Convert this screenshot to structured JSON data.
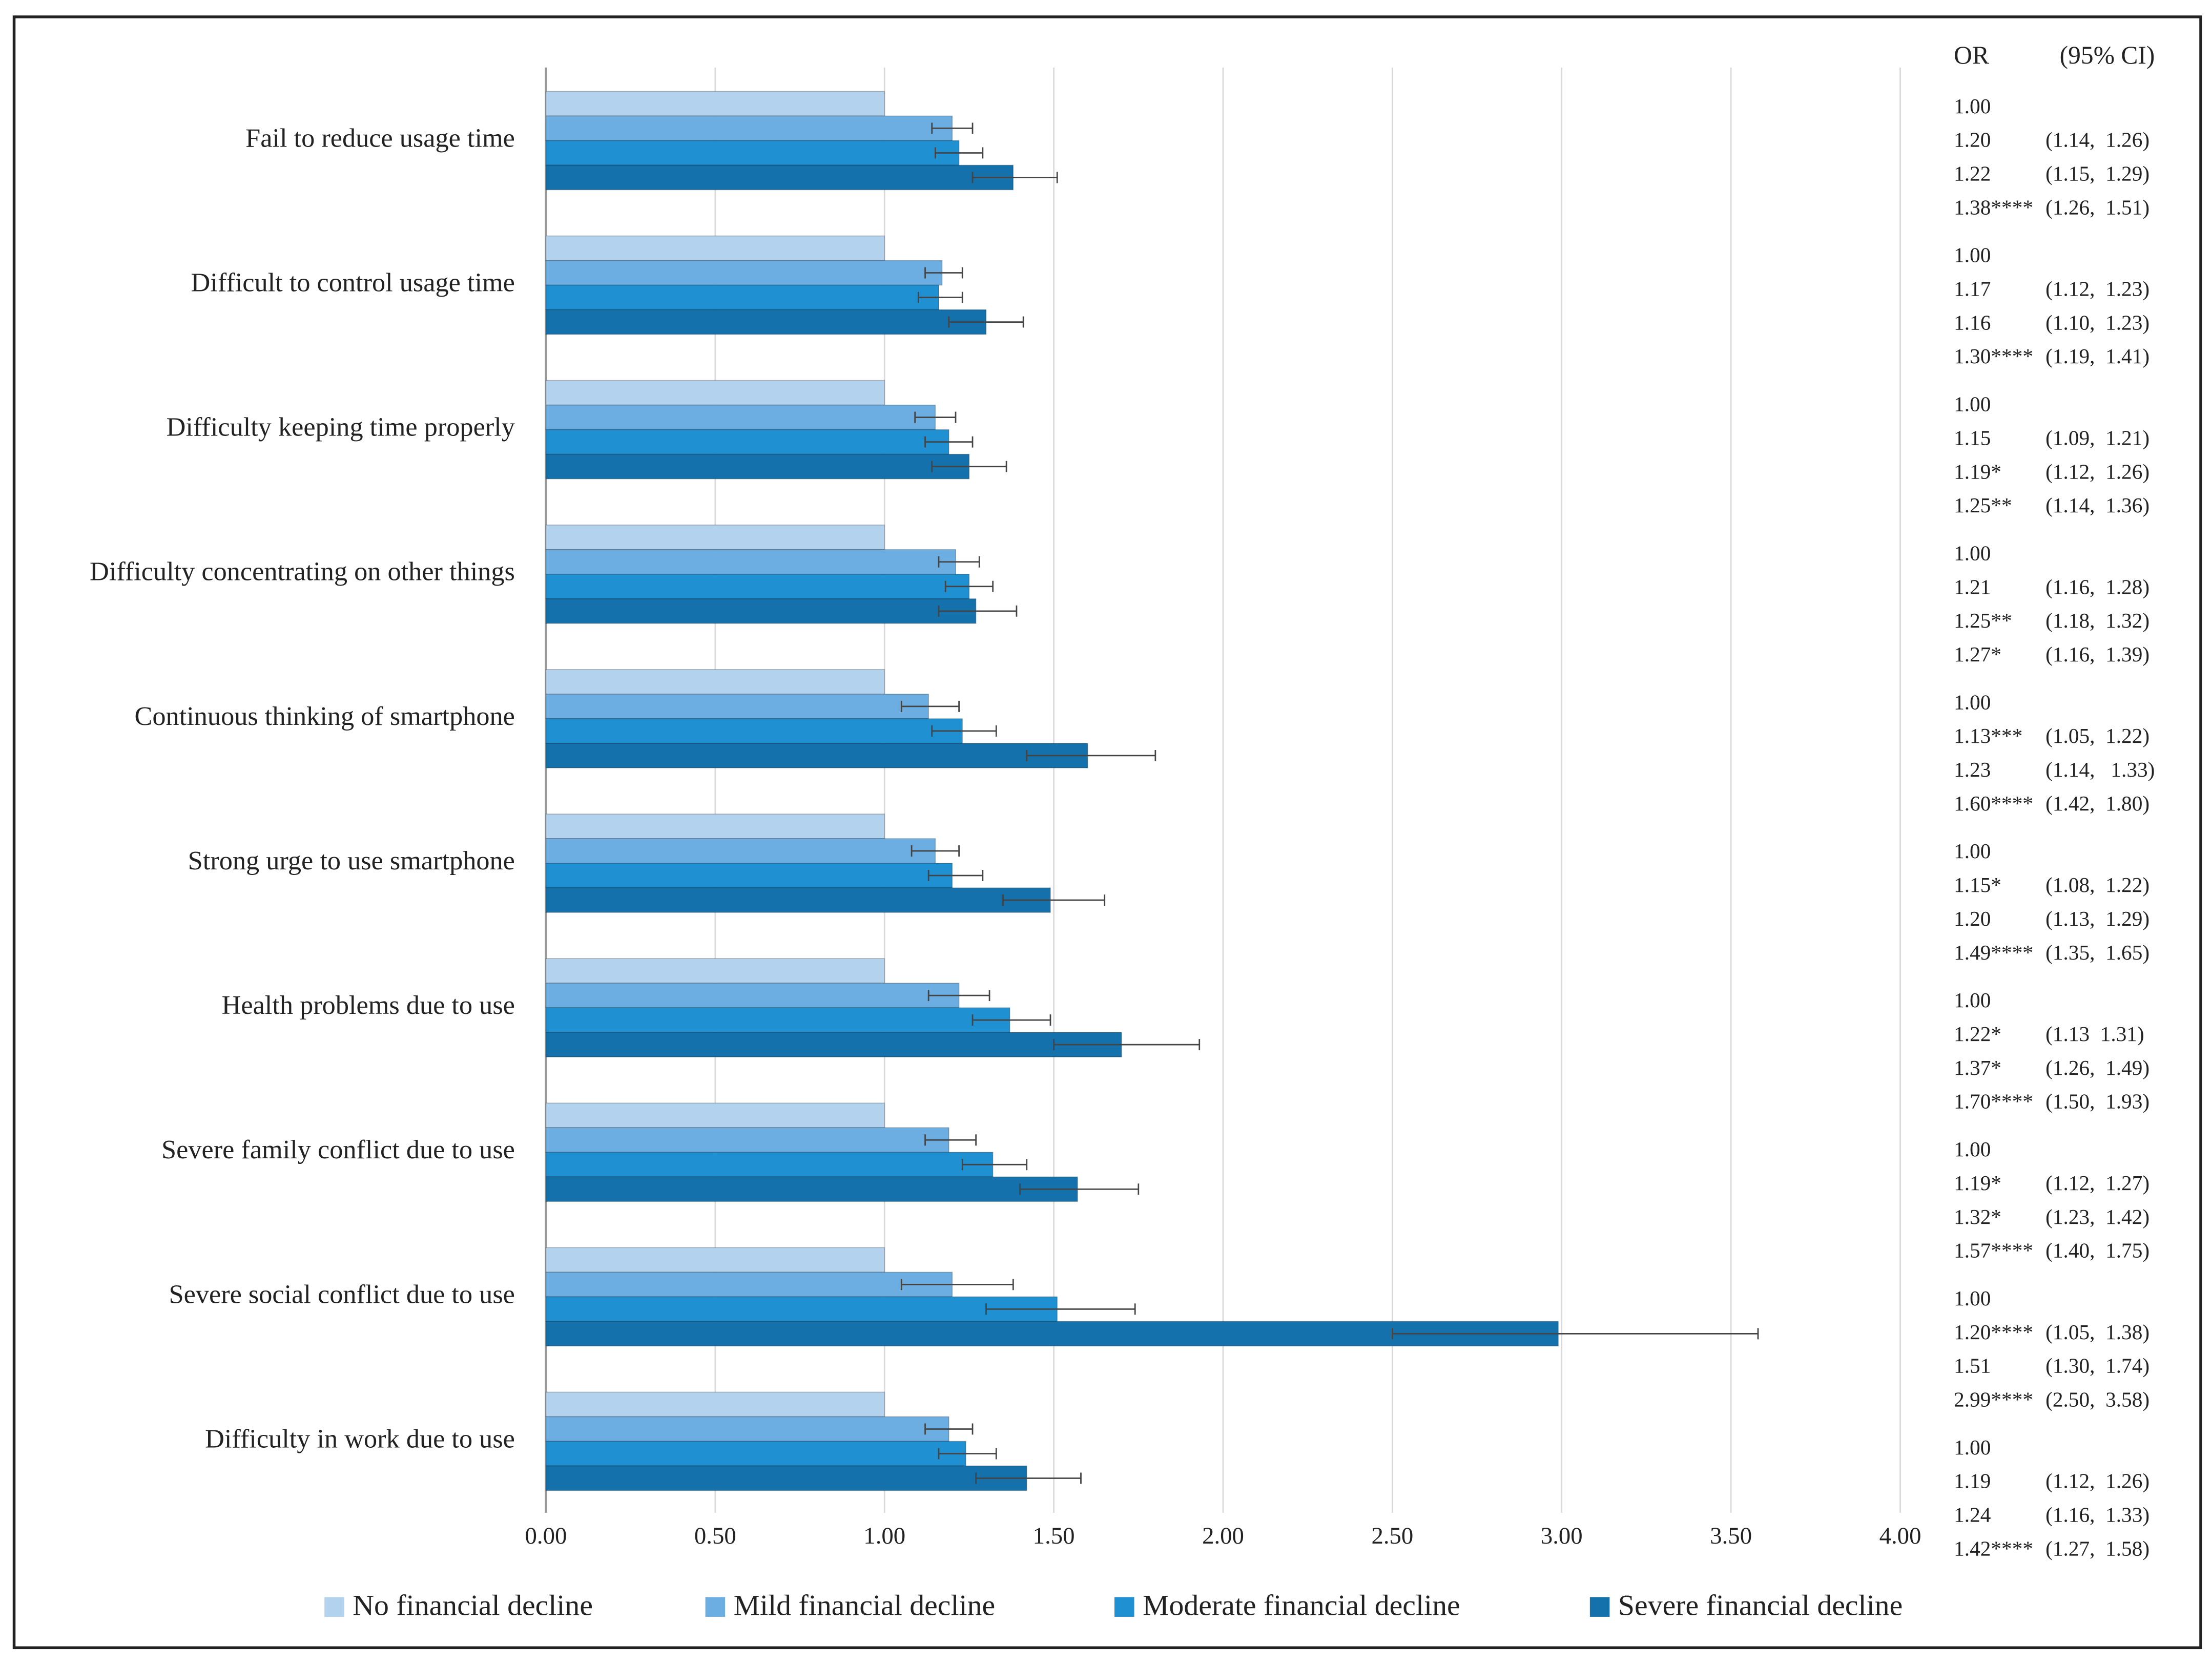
{
  "chart_data": {
    "type": "bar",
    "orientation": "horizontal",
    "categories": [
      "Fail to reduce usage time",
      "Difficult to control usage time",
      "Difficulty keeping time properly",
      "Difficulty concentrating on other things",
      "Continuous thinking of smartphone",
      "Strong urge to use smartphone",
      "Health problems due to use",
      "Severe family conflict due to use",
      "Severe social conflict due to use",
      "Difficulty in work due to use"
    ],
    "xlim": [
      0,
      4
    ],
    "xticks": [
      {
        "value": 0,
        "label": "0.00"
      },
      {
        "value": 0.5,
        "label": "0.50"
      },
      {
        "value": 1,
        "label": "1.00"
      },
      {
        "value": 1.5,
        "label": "1.50"
      },
      {
        "value": 2,
        "label": "2.00"
      },
      {
        "value": 2.5,
        "label": "2.50"
      },
      {
        "value": 3,
        "label": "3.00"
      },
      {
        "value": 3.5,
        "label": "3.50"
      },
      {
        "value": 4,
        "label": "4.00"
      }
    ],
    "grid": true,
    "legend": "bottom",
    "table_headers": [
      "OR",
      "(95% CI)"
    ],
    "series": [
      {
        "name": "No financial decline",
        "color": "#b3d2ee",
        "values": [
          1,
          1,
          1,
          1,
          1,
          1,
          1,
          1,
          1,
          1
        ],
        "value_labels": [
          "1.00",
          "1.00",
          "1.00",
          "1.00",
          "1.00",
          "1.00",
          "1.00",
          "1.00",
          "1.00",
          "1.00"
        ]
      },
      {
        "name": "Mild financial decline",
        "color": "#6caee1",
        "values": [
          1.2,
          1.17,
          1.15,
          1.21,
          1.13,
          1.15,
          1.22,
          1.19,
          1.2,
          1.19
        ],
        "value_labels": [
          "1.20",
          "1.17",
          "1.15",
          "1.21",
          "1.13***",
          "1.15*",
          "1.22*",
          "1.19*",
          "1.20****",
          "1.19"
        ],
        "ci_low": [
          1.14,
          1.12,
          1.09,
          1.16,
          1.05,
          1.08,
          1.13,
          1.12,
          1.05,
          1.12
        ],
        "ci_high": [
          1.26,
          1.23,
          1.21,
          1.28,
          1.22,
          1.22,
          1.31,
          1.27,
          1.38,
          1.26
        ],
        "ci_labels": [
          "(1.14,  1.26)",
          "(1.12,  1.23)",
          "(1.09,  1.21)",
          "(1.16,  1.28)",
          "(1.05,  1.22)",
          "(1.08,  1.22)",
          "(1.13  1.31)",
          "(1.12,  1.27)",
          "(1.05,  1.38)",
          "(1.12,  1.26)"
        ]
      },
      {
        "name": "Moderate financial decline",
        "color": "#1f90d1",
        "values": [
          1.22,
          1.16,
          1.19,
          1.25,
          1.23,
          1.2,
          1.37,
          1.32,
          1.51,
          1.24
        ],
        "value_labels": [
          "1.22",
          "1.16",
          "1.19*",
          "1.25**",
          "1.23",
          "1.20",
          "1.37*",
          "1.32*",
          "1.51",
          "1.24"
        ],
        "ci_low": [
          1.15,
          1.1,
          1.12,
          1.18,
          1.14,
          1.13,
          1.26,
          1.23,
          1.3,
          1.16
        ],
        "ci_high": [
          1.29,
          1.23,
          1.26,
          1.32,
          1.33,
          1.29,
          1.49,
          1.42,
          1.74,
          1.33
        ],
        "ci_labels": [
          "(1.15,  1.29)",
          "(1.10,  1.23)",
          "(1.12,  1.26)",
          "(1.18,  1.32)",
          "(1.14,   1.33)",
          "(1.13,  1.29)",
          "(1.26,  1.49)",
          "(1.23,  1.42)",
          "(1.30,  1.74)",
          "(1.16,  1.33)"
        ]
      },
      {
        "name": "Severe financial decline",
        "color": "#1571ab",
        "values": [
          1.38,
          1.3,
          1.25,
          1.27,
          1.6,
          1.49,
          1.7,
          1.57,
          2.99,
          1.42
        ],
        "value_labels": [
          "1.38****",
          "1.30****",
          "1.25**",
          "1.27*",
          "1.60****",
          "1.49****",
          "1.70****",
          "1.57****",
          "2.99****",
          "1.42****"
        ],
        "ci_low": [
          1.26,
          1.19,
          1.14,
          1.16,
          1.42,
          1.35,
          1.5,
          1.4,
          2.5,
          1.27
        ],
        "ci_high": [
          1.51,
          1.41,
          1.36,
          1.39,
          1.8,
          1.65,
          1.93,
          1.75,
          3.58,
          1.58
        ],
        "ci_labels": [
          "(1.26,  1.51)",
          "(1.19,  1.41)",
          "(1.14,  1.36)",
          "(1.16,  1.39)",
          "(1.42,  1.80)",
          "(1.35,  1.65)",
          "(1.50,  1.93)",
          "(1.40,  1.75)",
          "(2.50,  3.58)",
          "(1.27,  1.58)"
        ]
      }
    ]
  }
}
